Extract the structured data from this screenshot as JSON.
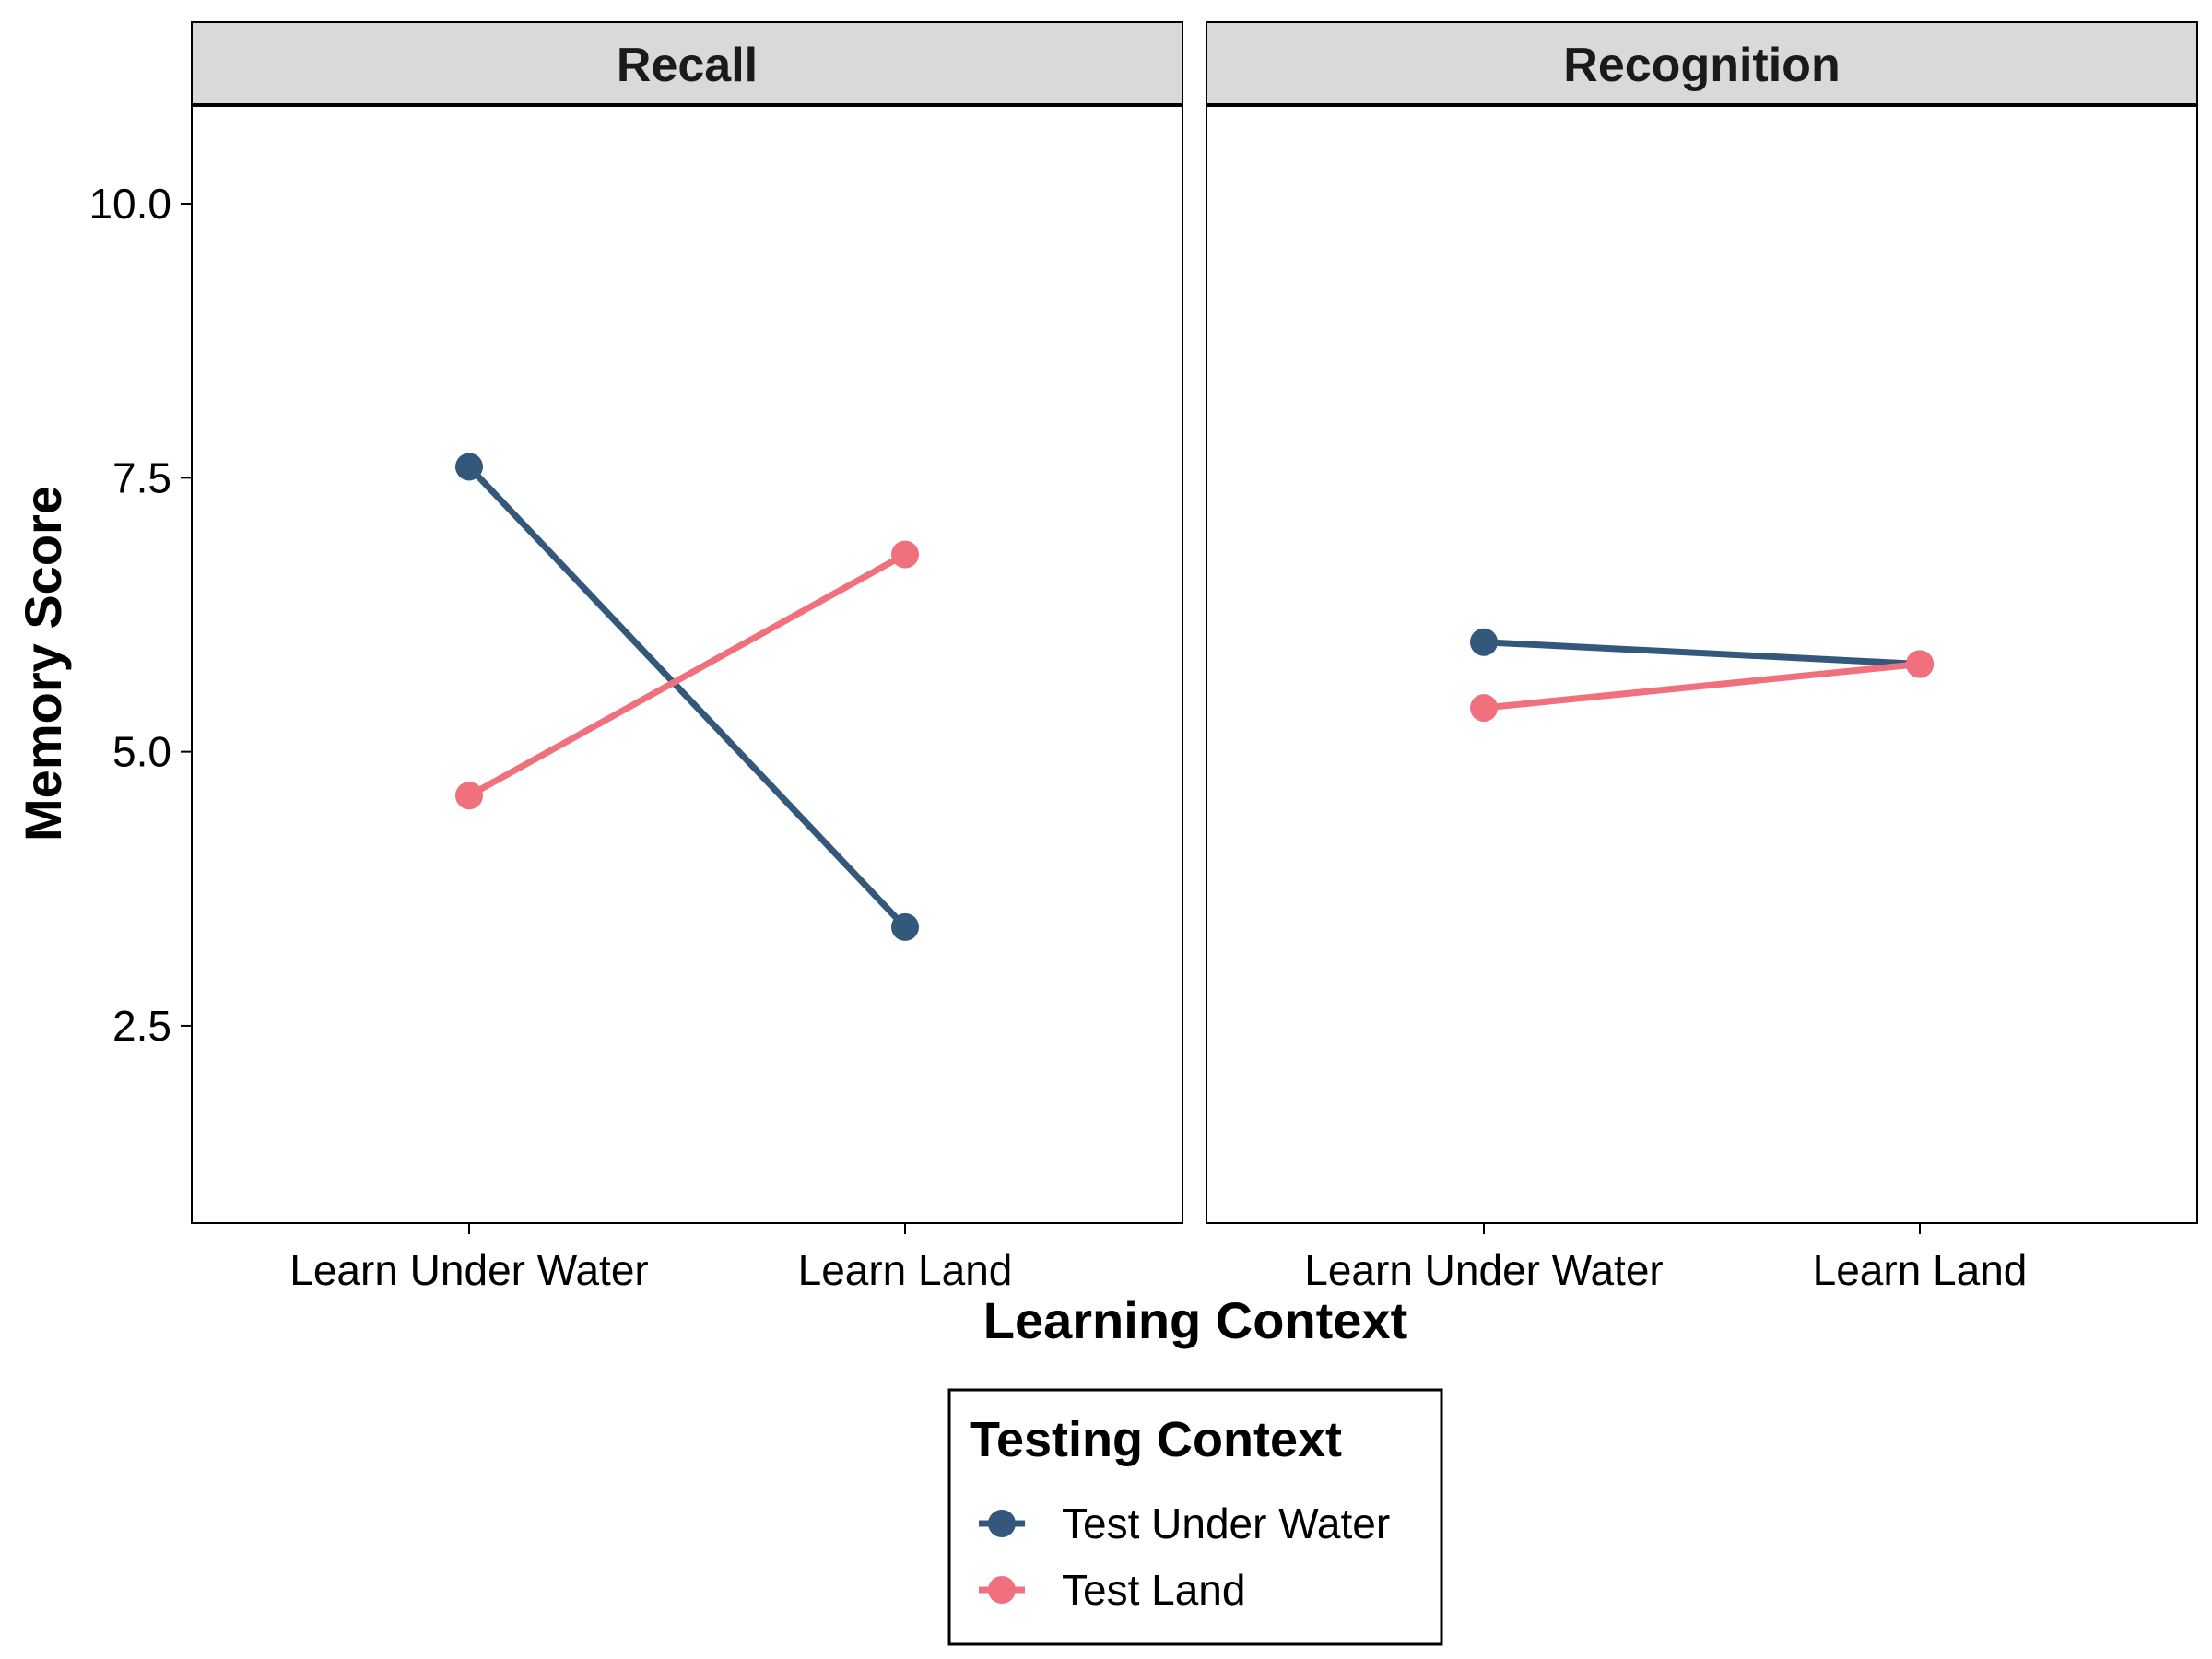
{
  "chart_data": {
    "type": "line",
    "facet_labels": [
      "Recall",
      "Recognition"
    ],
    "categories": [
      "Learn Under Water",
      "Learn Land"
    ],
    "xlabel": "Learning Context",
    "ylabel": "Memory Score",
    "ylim": [
      0.7,
      10.9
    ],
    "yticks": [
      2.5,
      5.0,
      7.5,
      10.0
    ],
    "ytick_labels": [
      "2.5",
      "5.0",
      "7.5",
      "10.0"
    ],
    "legend_title": "Testing Context",
    "legend_position": "bottom",
    "series": [
      {
        "name": "Test Under Water",
        "color": "#34587c",
        "panels": [
          [
            7.6,
            3.4
          ],
          [
            6.0,
            5.8
          ]
        ]
      },
      {
        "name": "Test Land",
        "color": "#f0707d",
        "panels": [
          [
            4.6,
            6.8
          ],
          [
            5.4,
            5.8
          ]
        ]
      }
    ]
  }
}
